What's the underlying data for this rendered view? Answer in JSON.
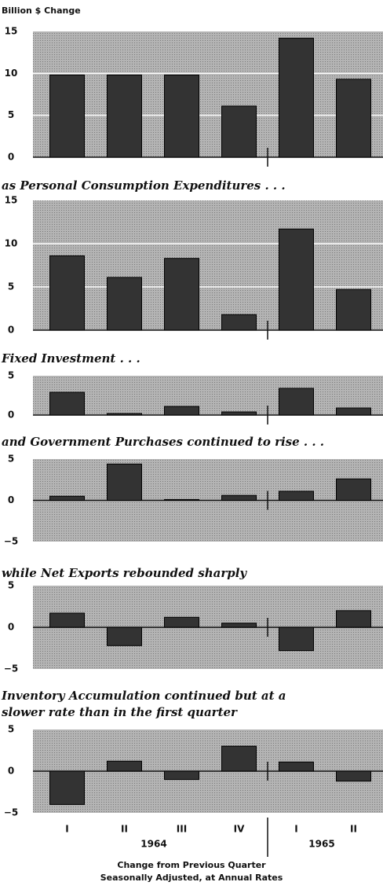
{
  "unit_label": "Billion $ Change",
  "categories": [
    "I",
    "II",
    "III",
    "IV",
    "I",
    "II"
  ],
  "years": [
    "1964",
    "1965"
  ],
  "footnote": [
    "Change from Previous Quarter",
    "Seasonally Adjusted, at Annual Rates"
  ],
  "chart_data": [
    {
      "type": "bar",
      "values": [
        9.8,
        9.8,
        9.8,
        6.1,
        14.2,
        9.3
      ],
      "color": "#333333",
      "ylim": [
        0,
        15
      ],
      "yticks": [
        0,
        5,
        10,
        15
      ],
      "grid": true
    },
    {
      "type": "bar",
      "title": "as Personal Consumption Expenditures . . .",
      "values": [
        8.6,
        6.1,
        8.3,
        1.8,
        11.7,
        4.7
      ],
      "color": "#333333",
      "ylim": [
        0,
        15
      ],
      "yticks": [
        0,
        5,
        10,
        15
      ],
      "grid": true
    },
    {
      "type": "bar",
      "title": "Fixed Investment . . .",
      "values": [
        2.9,
        0.2,
        1.1,
        0.4,
        3.4,
        0.9
      ],
      "color": "#333333",
      "ylim": [
        0,
        5
      ],
      "yticks": [
        0,
        5
      ],
      "grid": false
    },
    {
      "type": "bar",
      "title": "and Government Purchases continued to rise . . .",
      "values": [
        0.5,
        4.4,
        0.1,
        0.6,
        1.1,
        2.6
      ],
      "color": "#333333",
      "ylim": [
        -5,
        5
      ],
      "yticks": [
        {
          "value": -5,
          "label": "−5"
        },
        0,
        5
      ],
      "grid": false
    },
    {
      "type": "bar",
      "title": "while Net Exports rebounded sharply",
      "values": [
        1.7,
        -2.2,
        1.2,
        0.5,
        -2.8,
        2.0
      ],
      "color": "#333333",
      "ylim": [
        -5,
        5
      ],
      "yticks": [
        {
          "value": -5,
          "label": "−5"
        },
        0,
        5
      ],
      "grid": false
    },
    {
      "type": "bar",
      "title": [
        "Inventory Accumulation continued but at a",
        "slower rate than in the first quarter"
      ],
      "values": [
        -4.0,
        1.2,
        -1.0,
        3.0,
        1.1,
        -1.2
      ],
      "color": "#333333",
      "ylim": [
        -5,
        5
      ],
      "yticks": [
        {
          "value": -5,
          "label": "−5"
        },
        0,
        5
      ],
      "grid": false
    }
  ]
}
